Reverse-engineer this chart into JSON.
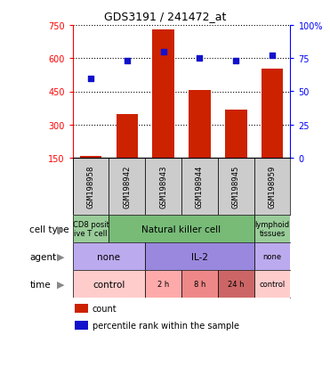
{
  "title": "GDS3191 / 241472_at",
  "samples": [
    "GSM198958",
    "GSM198942",
    "GSM198943",
    "GSM198944",
    "GSM198945",
    "GSM198959"
  ],
  "counts": [
    158,
    348,
    728,
    458,
    368,
    552
  ],
  "percentile_ranks": [
    60,
    73,
    80,
    75,
    73,
    77
  ],
  "ylim_left": [
    150,
    750
  ],
  "ylim_right": [
    0,
    100
  ],
  "yticks_left": [
    150,
    300,
    450,
    600,
    750
  ],
  "yticks_right": [
    0,
    25,
    50,
    75,
    100
  ],
  "bar_color": "#cc2200",
  "dot_color": "#1111cc",
  "cell_type_row": {
    "label": "cell type",
    "segments": [
      {
        "text": "CD8 posit\nive T cell",
        "start": 0,
        "end": 1,
        "color": "#99cc99"
      },
      {
        "text": "Natural killer cell",
        "start": 1,
        "end": 5,
        "color": "#77bb77"
      },
      {
        "text": "lymphoid\ntissues",
        "start": 5,
        "end": 6,
        "color": "#99cc99"
      }
    ]
  },
  "agent_row": {
    "label": "agent",
    "segments": [
      {
        "text": "none",
        "start": 0,
        "end": 2,
        "color": "#bbaaee"
      },
      {
        "text": "IL-2",
        "start": 2,
        "end": 5,
        "color": "#9988dd"
      },
      {
        "text": "none",
        "start": 5,
        "end": 6,
        "color": "#bbaaee"
      }
    ]
  },
  "time_row": {
    "label": "time",
    "segments": [
      {
        "text": "control",
        "start": 0,
        "end": 2,
        "color": "#ffcccc"
      },
      {
        "text": "2 h",
        "start": 2,
        "end": 3,
        "color": "#ffaaaa"
      },
      {
        "text": "8 h",
        "start": 3,
        "end": 4,
        "color": "#ee8888"
      },
      {
        "text": "24 h",
        "start": 4,
        "end": 5,
        "color": "#cc6666"
      },
      {
        "text": "control",
        "start": 5,
        "end": 6,
        "color": "#ffcccc"
      }
    ]
  },
  "legend_items": [
    {
      "color": "#cc2200",
      "label": "count"
    },
    {
      "color": "#1111cc",
      "label": "percentile rank within the sample"
    }
  ],
  "bar_width": 0.6,
  "sample_bg_color": "#cccccc",
  "row_labels": [
    "cell type",
    "agent",
    "time"
  ],
  "label_color": "#888888"
}
